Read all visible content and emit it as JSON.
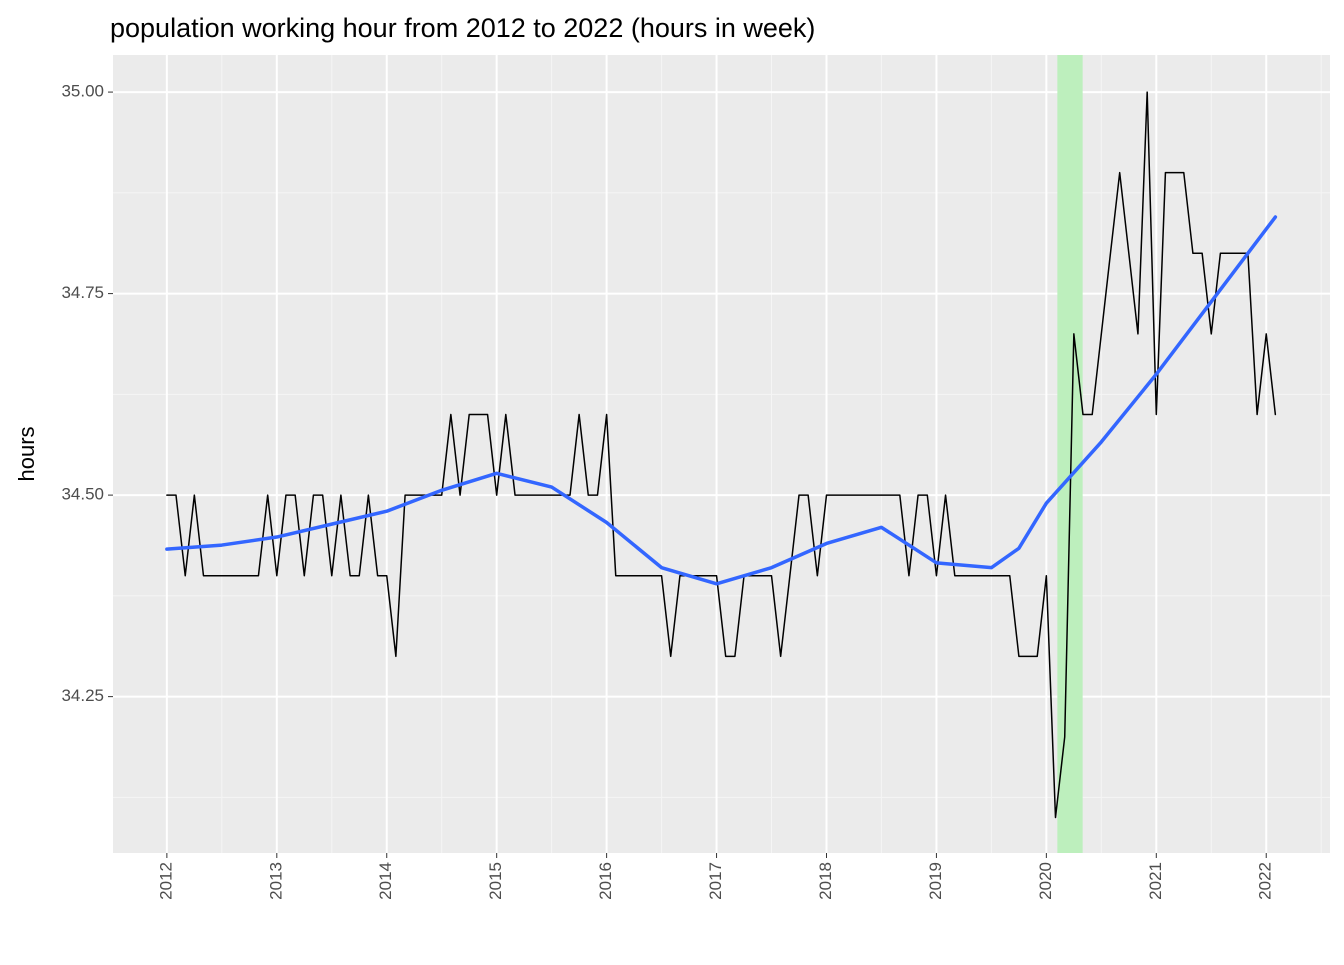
{
  "chart_data": {
    "type": "line",
    "title": "population working hour from 2012 to 2022 (hours in week)",
    "y_label": "hours",
    "x": [
      2012,
      2012.083,
      2012.167,
      2012.25,
      2012.333,
      2012.417,
      2012.5,
      2012.583,
      2012.667,
      2012.75,
      2012.833,
      2012.917,
      2013,
      2013.083,
      2013.167,
      2013.25,
      2013.333,
      2013.417,
      2013.5,
      2013.583,
      2013.667,
      2013.75,
      2013.833,
      2013.917,
      2014,
      2014.083,
      2014.167,
      2014.25,
      2014.333,
      2014.417,
      2014.5,
      2014.583,
      2014.667,
      2014.75,
      2014.833,
      2014.917,
      2015,
      2015.083,
      2015.167,
      2015.25,
      2015.333,
      2015.417,
      2015.5,
      2015.583,
      2015.667,
      2015.75,
      2015.833,
      2015.917,
      2016,
      2016.083,
      2016.167,
      2016.25,
      2016.333,
      2016.417,
      2016.5,
      2016.583,
      2016.667,
      2016.75,
      2016.833,
      2016.917,
      2017,
      2017.083,
      2017.167,
      2017.25,
      2017.333,
      2017.417,
      2017.5,
      2017.583,
      2017.667,
      2017.75,
      2017.833,
      2017.917,
      2018,
      2018.083,
      2018.167,
      2018.25,
      2018.333,
      2018.417,
      2018.5,
      2018.583,
      2018.667,
      2018.75,
      2018.833,
      2018.917,
      2019,
      2019.083,
      2019.167,
      2019.25,
      2019.333,
      2019.417,
      2019.5,
      2019.583,
      2019.667,
      2019.75,
      2019.833,
      2019.917,
      2020,
      2020.083,
      2020.167,
      2020.25,
      2020.333,
      2020.417,
      2020.5,
      2020.583,
      2020.667,
      2020.75,
      2020.833,
      2020.917,
      2021,
      2021.083,
      2021.167,
      2021.25,
      2021.333,
      2021.417,
      2021.5,
      2021.583,
      2021.667,
      2021.75,
      2021.833,
      2021.917,
      2022,
      2022.083
    ],
    "series": [
      {
        "color": "#000000",
        "values": [
          34.5,
          34.5,
          34.4,
          34.5,
          34.4,
          34.4,
          34.4,
          34.4,
          34.4,
          34.4,
          34.4,
          34.5,
          34.4,
          34.5,
          34.5,
          34.4,
          34.5,
          34.5,
          34.4,
          34.5,
          34.4,
          34.4,
          34.5,
          34.4,
          34.4,
          34.3,
          34.5,
          34.5,
          34.5,
          34.5,
          34.5,
          34.6,
          34.5,
          34.6,
          34.6,
          34.6,
          34.5,
          34.6,
          34.5,
          34.5,
          34.5,
          34.5,
          34.5,
          34.5,
          34.5,
          34.6,
          34.5,
          34.5,
          34.6,
          34.4,
          34.4,
          34.4,
          34.4,
          34.4,
          34.4,
          34.3,
          34.4,
          34.4,
          34.4,
          34.4,
          34.4,
          34.3,
          34.3,
          34.4,
          34.4,
          34.4,
          34.4,
          34.3,
          34.4,
          34.5,
          34.5,
          34.4,
          34.5,
          34.5,
          34.5,
          34.5,
          34.5,
          34.5,
          34.5,
          34.5,
          34.5,
          34.4,
          34.5,
          34.5,
          34.4,
          34.5,
          34.4,
          34.4,
          34.4,
          34.4,
          34.4,
          34.4,
          34.4,
          34.3,
          34.3,
          34.3,
          34.4,
          34.1,
          34.2,
          34.7,
          34.6,
          34.6,
          34.7,
          34.8,
          34.9,
          34.8,
          34.7,
          35.0,
          34.6,
          34.9,
          34.9,
          34.9,
          34.8,
          34.8,
          34.7,
          34.8,
          34.8,
          34.8,
          34.8,
          34.6,
          34.7,
          34.6
        ]
      },
      {
        "color": "#3366ff",
        "x": [
          2012,
          2012.5,
          2013,
          2013.5,
          2014,
          2014.5,
          2015,
          2015.5,
          2016,
          2016.5,
          2017,
          2017.5,
          2018,
          2018.5,
          2019,
          2019.5,
          2019.75,
          2020,
          2020.5,
          2021,
          2021.5,
          2022.083
        ],
        "values": [
          34.433,
          34.438,
          34.448,
          34.464,
          34.48,
          34.506,
          34.527,
          34.51,
          34.466,
          34.41,
          34.39,
          34.41,
          34.44,
          34.46,
          34.416,
          34.41,
          34.434,
          34.49,
          34.566,
          34.65,
          34.74,
          34.845
        ]
      }
    ],
    "highlight": {
      "xmin": 2020.1,
      "xmax": 2020.33,
      "color": "#bdefbd"
    },
    "xlim": [
      2011.51,
      2022.58
    ],
    "xticks": [
      2012,
      2013,
      2014,
      2015,
      2016,
      2017,
      2018,
      2019,
      2020,
      2021,
      2022
    ],
    "ylim": [
      34.056,
      35.046
    ],
    "yticks": [
      34.25,
      {
        "value": 34.5,
        "label": "34.50"
      },
      34.75,
      {
        "value": 35,
        "label": "35.00"
      }
    ],
    "grid": true
  }
}
